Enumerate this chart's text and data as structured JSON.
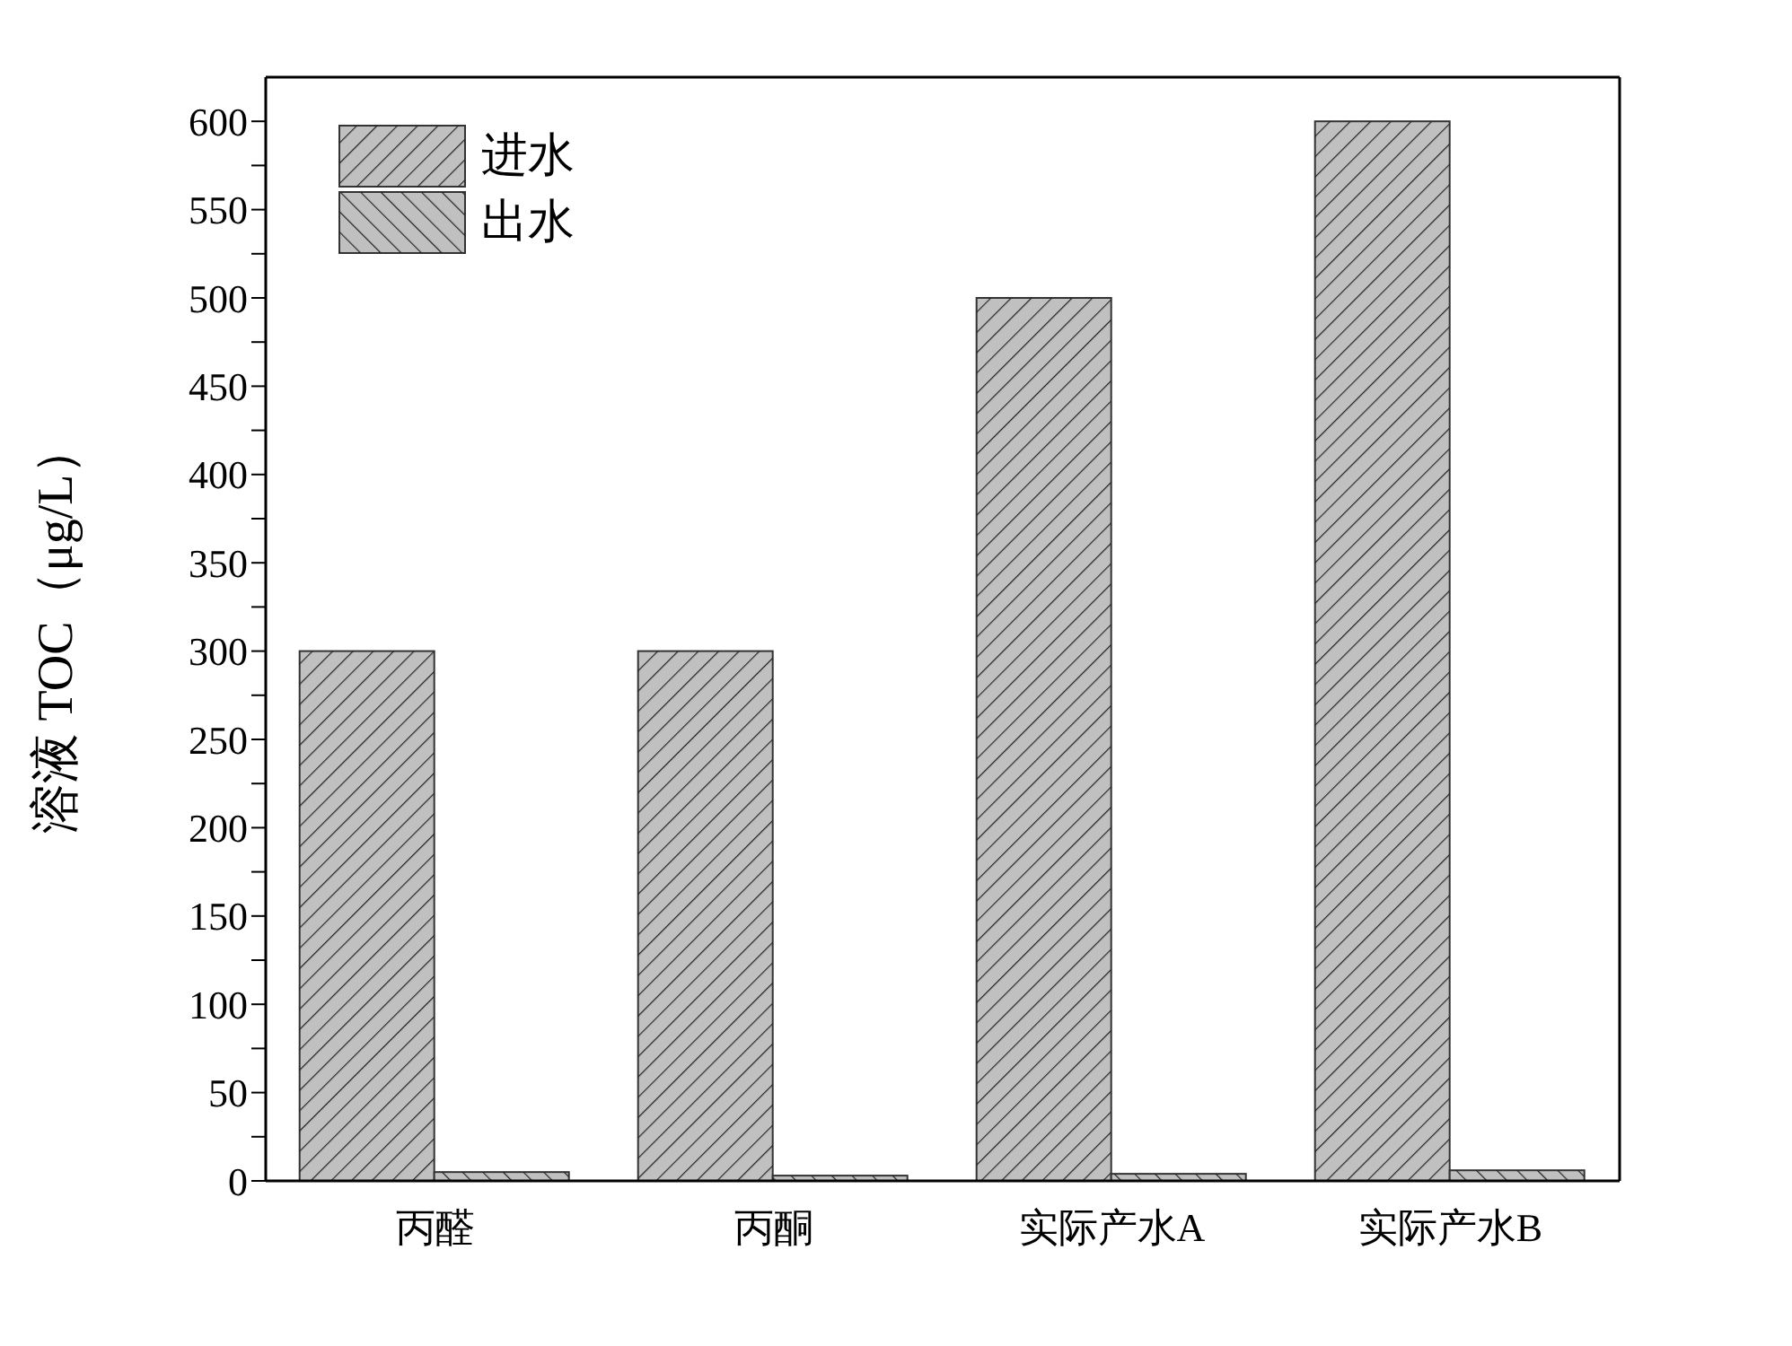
{
  "chart_data": {
    "type": "bar",
    "ylabel": "溶液 TOC（μg/L）",
    "categories": [
      "丙醛",
      "丙酮",
      "实际产水A",
      "实际产水B"
    ],
    "series": [
      {
        "name": "进水",
        "color": "#c0c0c0",
        "values": [
          300,
          300,
          500,
          600
        ]
      },
      {
        "name": "出水",
        "color": "#c0c0c0",
        "values": [
          5,
          3,
          4,
          6
        ]
      }
    ],
    "ylim": [
      0,
      625
    ],
    "yticks": [
      0,
      {
        "value": 25,
        "label": null
      },
      50,
      {
        "value": 75,
        "label": null
      },
      100,
      {
        "value": 125,
        "label": null
      },
      150,
      {
        "value": 175,
        "label": null
      },
      200,
      {
        "value": 225,
        "label": null
      },
      250,
      {
        "value": 275,
        "label": null
      },
      300,
      {
        "value": 325,
        "label": null
      },
      350,
      {
        "value": 375,
        "label": null
      },
      400,
      {
        "value": 425,
        "label": null
      },
      450,
      {
        "value": 475,
        "label": null
      },
      500,
      {
        "value": 525,
        "label": null
      },
      550,
      {
        "value": 575,
        "label": null
      },
      600
    ],
    "grid": false,
    "legend": "top left"
  }
}
